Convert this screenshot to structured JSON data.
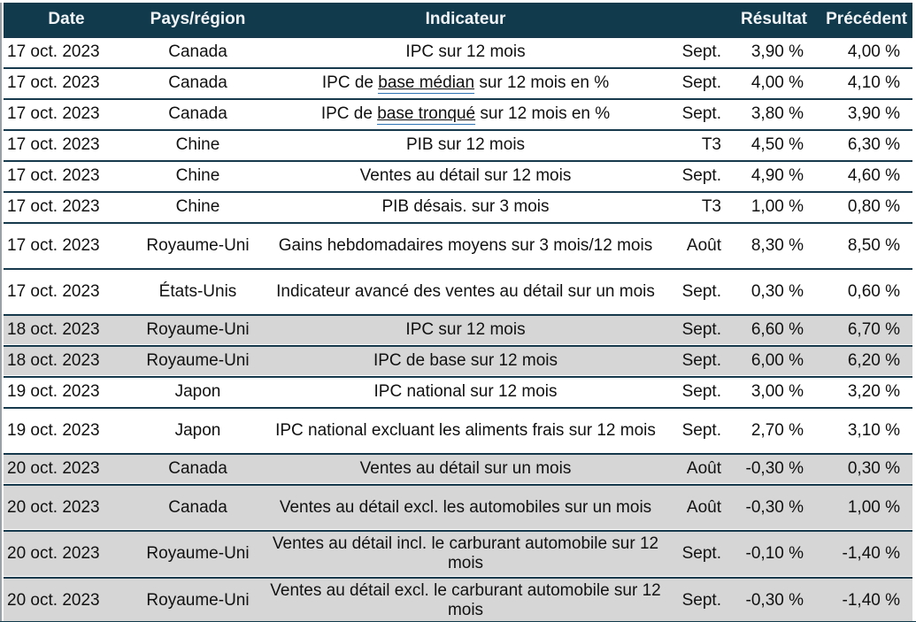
{
  "colors": {
    "header_bg": "#113a4d",
    "row_border": "#16394c",
    "shaded_row_bg": "#d6d6d6",
    "link_underline": "#2e74b5",
    "header_text": "#f2f5f7",
    "body_text": "#111111"
  },
  "table": {
    "columns": {
      "date": "Date",
      "region": "Pays/région",
      "indicator": "Indicateur",
      "period": "",
      "result": "Résultat",
      "previous": "Précédent"
    },
    "rows": [
      {
        "date": "17 oct. 2023",
        "region": "Canada",
        "indicator_prefix": "IPC sur 12 mois",
        "indicator_link": "",
        "indicator_suffix": "",
        "period": "Sept.",
        "result": "3,90 %",
        "previous": "4,00 %",
        "shaded": false,
        "two_line": false
      },
      {
        "date": "17 oct. 2023",
        "region": "Canada",
        "indicator_prefix": "IPC de ",
        "indicator_link": "base médian",
        "indicator_suffix": " sur 12 mois en %",
        "period": "Sept.",
        "result": "4,00 %",
        "previous": "4,10 %",
        "shaded": false,
        "two_line": false
      },
      {
        "date": "17 oct. 2023",
        "region": "Canada",
        "indicator_prefix": "IPC de ",
        "indicator_link": "base tronqué",
        "indicator_suffix": " sur 12 mois en %",
        "period": "Sept.",
        "result": "3,80 %",
        "previous": "3,90 %",
        "shaded": false,
        "two_line": false
      },
      {
        "date": "17 oct. 2023",
        "region": "Chine",
        "indicator_prefix": "PIB sur 12 mois",
        "indicator_link": "",
        "indicator_suffix": "",
        "period": "T3",
        "result": "4,50 %",
        "previous": "6,30 %",
        "shaded": false,
        "two_line": false
      },
      {
        "date": "17 oct. 2023",
        "region": "Chine",
        "indicator_prefix": "Ventes au détail sur 12 mois",
        "indicator_link": "",
        "indicator_suffix": "",
        "period": "Sept.",
        "result": "4,90 %",
        "previous": "4,60 %",
        "shaded": false,
        "two_line": false
      },
      {
        "date": "17 oct. 2023",
        "region": "Chine",
        "indicator_prefix": "PIB désais. sur 3 mois",
        "indicator_link": "",
        "indicator_suffix": "",
        "period": "T3",
        "result": "1,00 %",
        "previous": "0,80 %",
        "shaded": false,
        "two_line": false
      },
      {
        "date": "17 oct. 2023",
        "region": "Royaume-Uni",
        "indicator_prefix": "Gains hebdomadaires moyens sur 3 mois/12 mois",
        "indicator_link": "",
        "indicator_suffix": "",
        "period": "Août",
        "result": "8,30 %",
        "previous": "8,50 %",
        "shaded": false,
        "two_line": true
      },
      {
        "date": "17 oct. 2023",
        "region": "États-Unis",
        "indicator_prefix": "Indicateur avancé des ventes au détail sur un mois",
        "indicator_link": "",
        "indicator_suffix": "",
        "period": "Sept.",
        "result": "0,30 %",
        "previous": "0,60 %",
        "shaded": false,
        "two_line": true
      },
      {
        "date": "18 oct. 2023",
        "region": "Royaume-Uni",
        "indicator_prefix": "IPC sur 12 mois",
        "indicator_link": "",
        "indicator_suffix": "",
        "period": "Sept.",
        "result": "6,60 %",
        "previous": "6,70 %",
        "shaded": true,
        "two_line": false
      },
      {
        "date": "18 oct. 2023",
        "region": "Royaume-Uni",
        "indicator_prefix": "IPC de base sur 12 mois",
        "indicator_link": "",
        "indicator_suffix": "",
        "period": "Sept.",
        "result": "6,00 %",
        "previous": "6,20 %",
        "shaded": true,
        "two_line": false
      },
      {
        "date": "19 oct. 2023",
        "region": "Japon",
        "indicator_prefix": "IPC national sur 12 mois",
        "indicator_link": "",
        "indicator_suffix": "",
        "period": "Sept.",
        "result": "3,00 %",
        "previous": "3,20 %",
        "shaded": false,
        "two_line": false
      },
      {
        "date": "19 oct. 2023",
        "region": "Japon",
        "indicator_prefix": "IPC national excluant les aliments frais sur 12 mois",
        "indicator_link": "",
        "indicator_suffix": "",
        "period": "Sept.",
        "result": "2,70 %",
        "previous": "3,10 %",
        "shaded": false,
        "two_line": true
      },
      {
        "date": "20 oct. 2023",
        "region": "Canada",
        "indicator_prefix": "Ventes au détail sur un mois",
        "indicator_link": "",
        "indicator_suffix": "",
        "period": "Août",
        "result": "-0,30 %",
        "previous": "0,30 %",
        "shaded": true,
        "two_line": false
      },
      {
        "date": "20 oct. 2023",
        "region": "Canada",
        "indicator_prefix": "Ventes au détail excl. les automobiles sur un mois",
        "indicator_link": "",
        "indicator_suffix": "",
        "period": "Août",
        "result": "-0,30 %",
        "previous": "1,00 %",
        "shaded": true,
        "two_line": true
      },
      {
        "date": "20 oct. 2023",
        "region": "Royaume-Uni",
        "indicator_prefix": "Ventes au détail incl. le carburant automobile sur 12 mois",
        "indicator_link": "",
        "indicator_suffix": "",
        "period": "Sept.",
        "result": "-0,10 %",
        "previous": "-1,40 %",
        "shaded": true,
        "two_line": true
      },
      {
        "date": "20 oct. 2023",
        "region": "Royaume-Uni",
        "indicator_prefix": "Ventes au détail excl. le carburant automobile sur 12 mois",
        "indicator_link": "",
        "indicator_suffix": "",
        "period": "Sept.",
        "result": "-0,30 %",
        "previous": "-1,40 %",
        "shaded": true,
        "two_line": true
      }
    ]
  }
}
